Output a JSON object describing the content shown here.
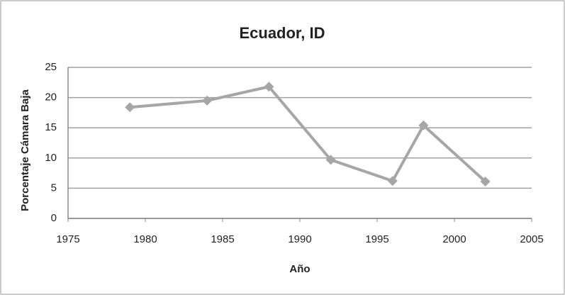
{
  "chart_data": {
    "type": "line",
    "title": "Ecuador, ID",
    "x_label": "Año",
    "y_label": "Porcentaje Cámara Baja",
    "x": [
      1979,
      1984,
      1988,
      1992,
      1996,
      1998,
      2002
    ],
    "values": [
      18.4,
      19.5,
      21.8,
      9.7,
      6.2,
      15.4,
      6.1
    ],
    "color": "#a6a6a6",
    "xlim": [
      1975,
      2005
    ],
    "xticks": [
      1975,
      1980,
      1985,
      1990,
      1995,
      2000,
      2005
    ],
    "ylim": [
      0,
      25
    ],
    "yticks": [
      0,
      5,
      10,
      15,
      20,
      25
    ],
    "grid": true
  }
}
